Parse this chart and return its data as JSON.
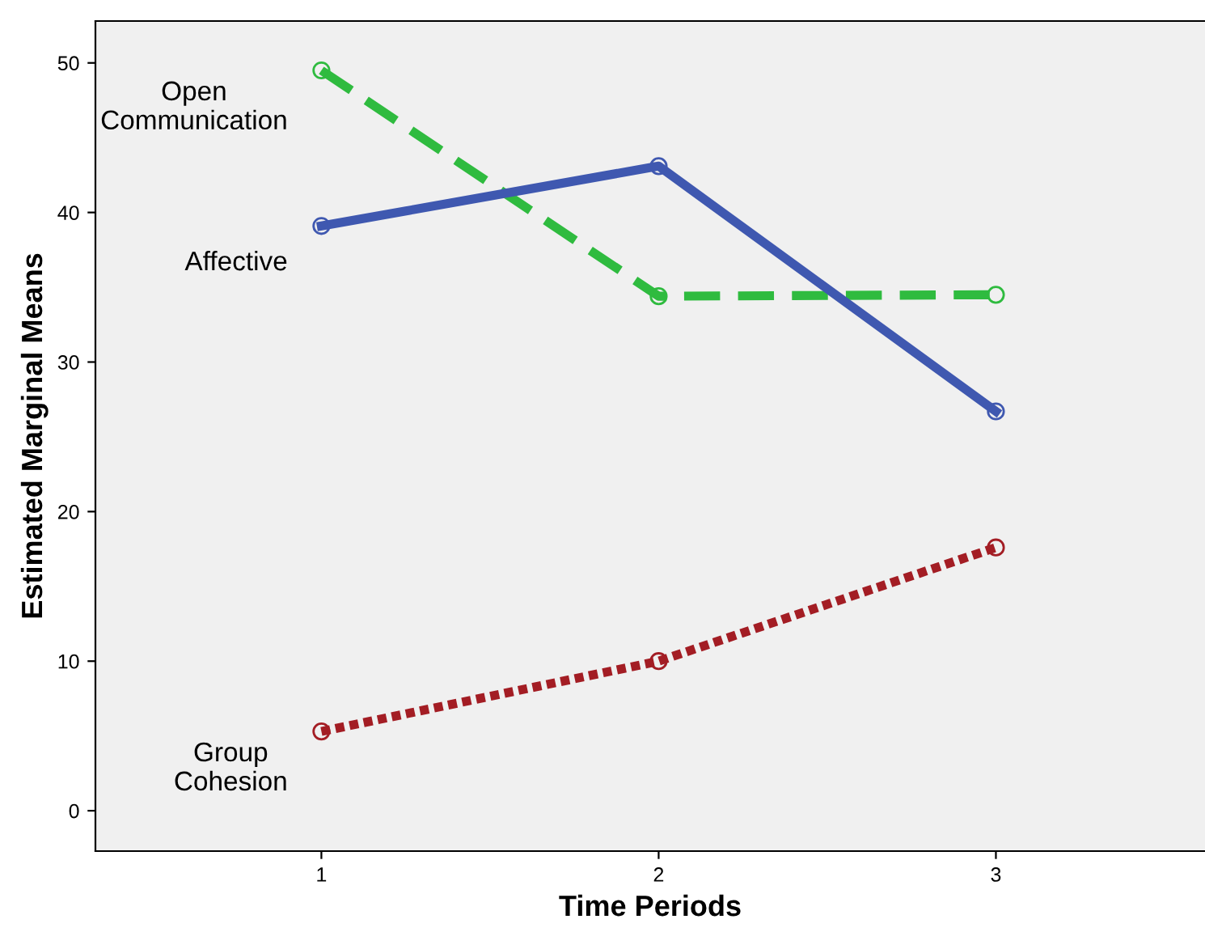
{
  "chart_data": {
    "type": "line",
    "xlabel": "Time Periods",
    "ylabel": "Estimated Marginal Means",
    "x": [
      1,
      2,
      3
    ],
    "xlim": [
      0.33,
      3.62
    ],
    "xticks": [
      1,
      2,
      3
    ],
    "ylim": [
      -2.7,
      52.8
    ],
    "yticks": [
      0,
      10,
      20,
      30,
      40,
      50
    ],
    "grid": false,
    "legend": false,
    "marker": "circle",
    "series": [
      {
        "name": "Open Communication",
        "color": "#2fbb3f",
        "line_style": "dashed",
        "values": [
          49.5,
          34.4,
          34.5
        ]
      },
      {
        "name": "Affective",
        "color": "#3f58b0",
        "line_style": "solid",
        "values": [
          39.1,
          43.1,
          26.7
        ]
      },
      {
        "name": "Group Cohesion",
        "color": "#a31d24",
        "line_style": "dotted",
        "values": [
          5.3,
          10.0,
          17.6
        ]
      }
    ]
  }
}
